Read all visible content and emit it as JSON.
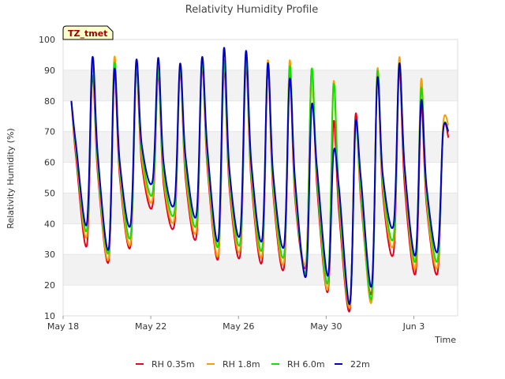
{
  "chart_data": {
    "type": "line",
    "title": "Relativity Humidity Profile",
    "xlabel": "Time",
    "ylabel": "Relativity Humidity (%)",
    "site_tag": "TZ_tmet",
    "xlim": [
      "2024-05-18",
      "2024-06-05"
    ],
    "ylim": [
      10,
      100
    ],
    "yticks": [
      10,
      20,
      30,
      40,
      50,
      60,
      70,
      80,
      90,
      100
    ],
    "xticks": [
      {
        "date": "2024-05-18",
        "label": "May 18"
      },
      {
        "date": "2024-05-22",
        "label": "May 22"
      },
      {
        "date": "2024-05-26",
        "label": "May 26"
      },
      {
        "date": "2024-05-30",
        "label": "May 30"
      },
      {
        "date": "2024-06-03",
        "label": "Jun 3"
      }
    ],
    "grid": "alternating horizontal bands",
    "legend_position": "bottom",
    "x": [
      "2024-05-18T09:00",
      "2024-05-18T14:00",
      "2024-05-19T02:00",
      "2024-05-19T08:00",
      "2024-05-19T14:00",
      "2024-05-20T02:00",
      "2024-05-20T08:00",
      "2024-05-20T14:00",
      "2024-05-21T02:00",
      "2024-05-21T08:00",
      "2024-05-21T14:00",
      "2024-05-22T02:00",
      "2024-05-22T08:00",
      "2024-05-22T14:00",
      "2024-05-23T02:00",
      "2024-05-23T08:00",
      "2024-05-23T14:00",
      "2024-05-24T02:00",
      "2024-05-24T08:00",
      "2024-05-24T14:00",
      "2024-05-25T02:00",
      "2024-05-25T08:00",
      "2024-05-25T14:00",
      "2024-05-26T02:00",
      "2024-05-26T08:00",
      "2024-05-26T14:00",
      "2024-05-27T02:00",
      "2024-05-27T08:00",
      "2024-05-27T14:00",
      "2024-05-28T02:00",
      "2024-05-28T08:00",
      "2024-05-28T14:00",
      "2024-05-29T02:00",
      "2024-05-29T08:00",
      "2024-05-29T14:00",
      "2024-05-30T02:00",
      "2024-05-30T08:00",
      "2024-05-30T14:00",
      "2024-05-31T02:00",
      "2024-05-31T08:00",
      "2024-05-31T14:00",
      "2024-06-01T02:00",
      "2024-06-01T08:00",
      "2024-06-01T14:00",
      "2024-06-02T02:00",
      "2024-06-02T08:00",
      "2024-06-02T14:00",
      "2024-06-03T02:00",
      "2024-06-03T08:00",
      "2024-06-03T14:00",
      "2024-06-04T02:00",
      "2024-06-04T08:00",
      "2024-06-04T14:00"
    ],
    "series": [
      {
        "name": "RH 0.35m",
        "color": "#e8001c",
        "values": [
          80,
          62,
          33,
          88,
          56,
          28,
          89,
          55,
          33,
          90,
          60,
          46,
          89,
          53,
          40,
          90,
          55,
          36,
          91,
          58,
          29,
          90,
          52,
          30,
          91,
          54,
          28,
          90,
          50,
          26,
          88,
          48,
          27,
          90,
          52,
          18,
          73,
          44,
          12,
          75,
          48,
          18,
          88,
          50,
          31,
          90,
          52,
          24,
          78,
          46,
          24,
          70,
          68
        ]
      },
      {
        "name": "RH 1.8m",
        "color": "#f5a000",
        "values": [
          80,
          64,
          36,
          93,
          58,
          29,
          94,
          57,
          34,
          93,
          62,
          48,
          91,
          55,
          42,
          92,
          57,
          38,
          93,
          60,
          30,
          93,
          54,
          32,
          94,
          56,
          30,
          93,
          52,
          28,
          93,
          50,
          28,
          88,
          55,
          19,
          86,
          48,
          13,
          72,
          50,
          15,
          90,
          52,
          34,
          94,
          56,
          26,
          87,
          48,
          26,
          72,
          72
        ]
      },
      {
        "name": "RH 6.0m",
        "color": "#14e000",
        "values": [
          80,
          65,
          38,
          91,
          60,
          31,
          92,
          59,
          36,
          91,
          64,
          50,
          90,
          57,
          44,
          91,
          59,
          40,
          92,
          62,
          33,
          92,
          56,
          34,
          93,
          58,
          32,
          92,
          54,
          30,
          91,
          52,
          25,
          90,
          56,
          21,
          85,
          50,
          14,
          71,
          52,
          16,
          89,
          54,
          36,
          92,
          58,
          28,
          84,
          50,
          28,
          70,
          70
        ]
      },
      {
        "name": "22m",
        "color": "#0000c8",
        "values": [
          80,
          66,
          40,
          94,
          62,
          32,
          90,
          60,
          40,
          93,
          66,
          54,
          94,
          60,
          47,
          92,
          62,
          43,
          94,
          64,
          35,
          97,
          58,
          37,
          96,
          60,
          35,
          92,
          56,
          33,
          87,
          54,
          23,
          78,
          58,
          23,
          63,
          52,
          14,
          72,
          55,
          20,
          87,
          56,
          40,
          92,
          58,
          30,
          80,
          52,
          31,
          70,
          70
        ]
      }
    ]
  }
}
